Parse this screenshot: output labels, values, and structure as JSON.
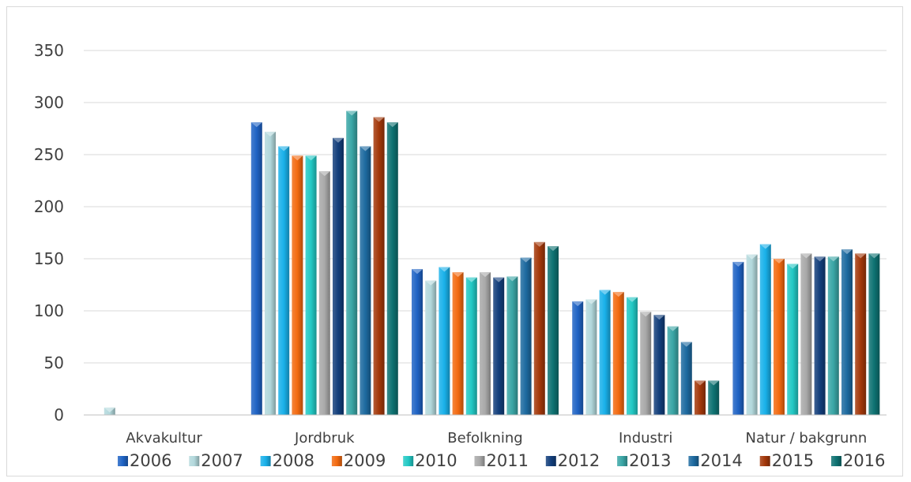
{
  "chart_data": {
    "type": "bar",
    "title": "",
    "xlabel": "",
    "ylabel": "",
    "ylim": [
      0,
      350
    ],
    "yticks": [
      0,
      50,
      100,
      150,
      200,
      250,
      300,
      350
    ],
    "grid": true,
    "legend_position": "bottom",
    "categories": [
      "Akvakultur",
      "Jordbruk",
      "Befolkning",
      "Industri",
      "Natur / bakgrunn"
    ],
    "series": [
      {
        "name": "2006",
        "color": "#1f63c4",
        "values": [
          0,
          281,
          140,
          109,
          147
        ]
      },
      {
        "name": "2007",
        "color": "#b2d8dc",
        "values": [
          7,
          272,
          129,
          111,
          154
        ]
      },
      {
        "name": "2008",
        "color": "#19b1ea",
        "values": [
          0,
          258,
          142,
          120,
          164
        ]
      },
      {
        "name": "2009",
        "color": "#f36a10",
        "values": [
          0,
          249,
          137,
          118,
          150
        ]
      },
      {
        "name": "2010",
        "color": "#22c9c5",
        "values": [
          0,
          249,
          132,
          113,
          145
        ]
      },
      {
        "name": "2011",
        "color": "#a9a9a9",
        "values": [
          0,
          234,
          137,
          99,
          155
        ]
      },
      {
        "name": "2012",
        "color": "#123e7b",
        "values": [
          0,
          266,
          132,
          96,
          152
        ]
      },
      {
        "name": "2013",
        "color": "#3aa6a6",
        "values": [
          0,
          292,
          133,
          85,
          152
        ]
      },
      {
        "name": "2014",
        "color": "#1d6aa0",
        "values": [
          0,
          258,
          151,
          70,
          159
        ]
      },
      {
        "name": "2015",
        "color": "#a3380a",
        "values": [
          0,
          286,
          166,
          33,
          155
        ]
      },
      {
        "name": "2016",
        "color": "#0e7272",
        "values": [
          0,
          281,
          162,
          33,
          155
        ]
      }
    ]
  }
}
